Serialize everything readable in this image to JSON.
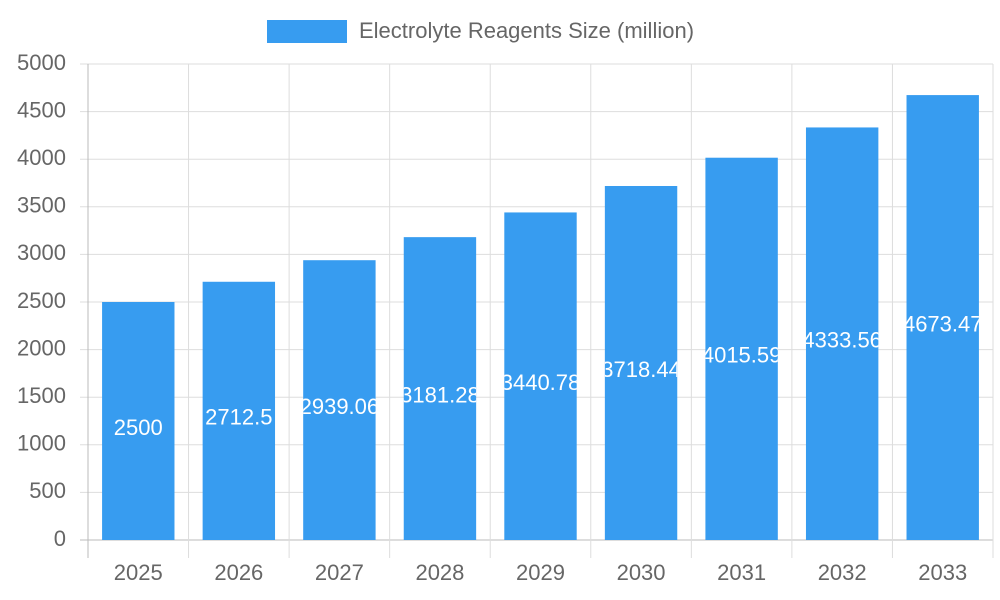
{
  "chart_data": {
    "type": "bar",
    "categories": [
      "2025",
      "2026",
      "2027",
      "2028",
      "2029",
      "2030",
      "2031",
      "2032",
      "2033"
    ],
    "series": [
      {
        "name": "Electrolyte Reagents Size (million)",
        "color": "#379cf0",
        "values": [
          2500,
          2712.5,
          2939.06,
          3181.28,
          3440.78,
          3718.44,
          4015.59,
          4333.56,
          4673.47
        ]
      }
    ],
    "ylim": [
      0,
      5000
    ],
    "yticks": [
      0,
      500,
      1000,
      1500,
      2000,
      2500,
      3000,
      3500,
      4000,
      4500,
      5000
    ],
    "grid": true,
    "legend": "top"
  }
}
